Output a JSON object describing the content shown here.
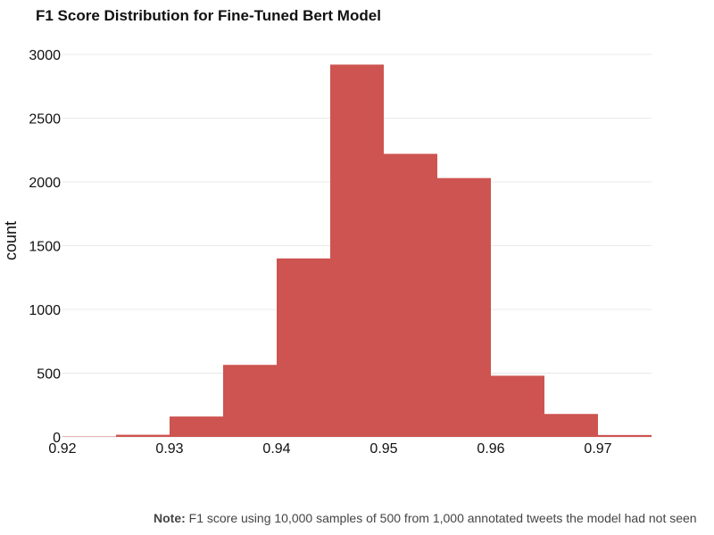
{
  "chart_data": {
    "type": "bar",
    "title": "F1 Score Distribution for Fine-Tuned Bert Model",
    "xlabel": "",
    "ylabel": "count",
    "bins": [
      {
        "start": 0.92,
        "end": 0.925,
        "count": 3
      },
      {
        "start": 0.925,
        "end": 0.93,
        "count": 17
      },
      {
        "start": 0.93,
        "end": 0.935,
        "count": 160
      },
      {
        "start": 0.935,
        "end": 0.94,
        "count": 565
      },
      {
        "start": 0.94,
        "end": 0.945,
        "count": 1400
      },
      {
        "start": 0.945,
        "end": 0.95,
        "count": 2920
      },
      {
        "start": 0.95,
        "end": 0.955,
        "count": 2220
      },
      {
        "start": 0.955,
        "end": 0.96,
        "count": 2030
      },
      {
        "start": 0.96,
        "end": 0.965,
        "count": 480
      },
      {
        "start": 0.965,
        "end": 0.97,
        "count": 180
      },
      {
        "start": 0.97,
        "end": 0.975,
        "count": 15
      }
    ],
    "xlim": [
      0.92,
      0.975
    ],
    "ylim": [
      0,
      3000
    ],
    "x_ticks": [
      "0.92",
      "0.93",
      "0.94",
      "0.95",
      "0.96",
      "0.97"
    ],
    "y_ticks": [
      "0",
      "500",
      "1000",
      "1500",
      "2000",
      "2500",
      "3000"
    ],
    "grid": true,
    "bar_color": "#cd5450",
    "grid_color": "#e8e8e8"
  },
  "note": {
    "label": "Note:",
    "text": "F1 score using 10,000 samples of 500 from 1,000 annotated tweets the model had not seen"
  }
}
